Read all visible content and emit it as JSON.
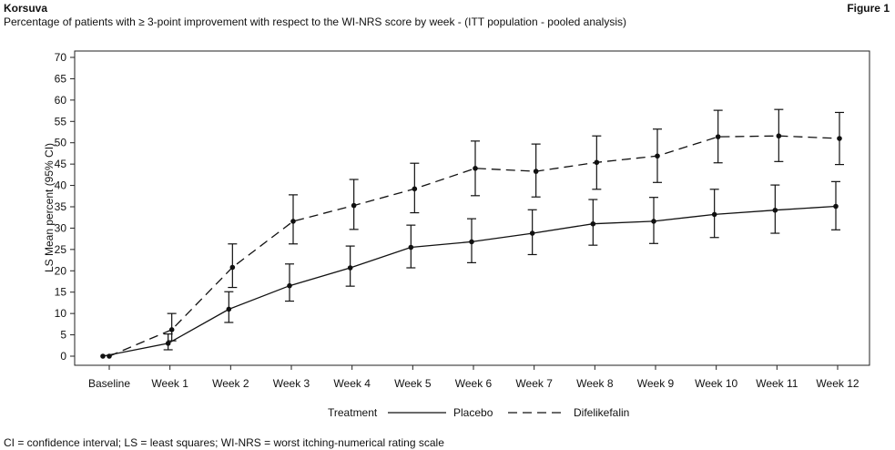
{
  "header": {
    "brand": "Korsuva",
    "subtitle": "Percentage of patients with ≥ 3-point improvement with respect to the WI-NRS score by week - (ITT population - pooled analysis)",
    "figure_label": "Figure 1"
  },
  "footnote": "CI = confidence interval; LS = least squares; WI-NRS = worst itching-numerical rating scale",
  "chart_data": {
    "type": "line",
    "title": "Percentage of patients with ≥ 3-point improvement with respect to the WI-NRS score by week - (ITT population - pooled analysis)",
    "xlabel": "",
    "ylabel": "LS Mean percent (95% CI)",
    "categories": [
      "Baseline",
      "Week 1",
      "Week 2",
      "Week 3",
      "Week 4",
      "Week 5",
      "Week 6",
      "Week 7",
      "Week 8",
      "Week 9",
      "Week 10",
      "Week 11",
      "Week 12"
    ],
    "yticks": [
      0,
      5,
      10,
      15,
      20,
      25,
      30,
      35,
      40,
      45,
      50,
      55,
      60,
      65,
      70
    ],
    "ylim": [
      0,
      70
    ],
    "grid": false,
    "legend": {
      "title": "Treatment",
      "placement": "bottom"
    },
    "series": [
      {
        "name": "Placebo",
        "style": "solid",
        "values": [
          0,
          3,
          11,
          16.5,
          20.7,
          25.5,
          26.8,
          28.8,
          31,
          31.6,
          33.2,
          34.2,
          35.1
        ],
        "ci_low": [
          null,
          1.5,
          7.9,
          12.9,
          16.4,
          20.7,
          21.9,
          23.8,
          26,
          26.4,
          27.8,
          28.8,
          29.6
        ],
        "ci_high": [
          null,
          5.2,
          15.1,
          21.6,
          25.8,
          30.7,
          32.2,
          34.3,
          36.7,
          37.2,
          39.1,
          40.1,
          40.9
        ]
      },
      {
        "name": "Difelikefalin",
        "style": "dashed",
        "values": [
          0,
          6.2,
          20.8,
          31.6,
          35.3,
          39.2,
          44,
          43.3,
          45.4,
          46.9,
          51.4,
          51.6,
          51
        ],
        "ci_low": [
          null,
          3.6,
          16.1,
          26.3,
          29.7,
          33.6,
          37.6,
          37.3,
          39.1,
          40.7,
          45.3,
          45.6,
          44.9
        ],
        "ci_high": [
          null,
          10,
          26.3,
          37.8,
          41.4,
          45.2,
          50.4,
          49.7,
          51.6,
          53.2,
          57.6,
          57.8,
          57.1
        ]
      }
    ]
  }
}
